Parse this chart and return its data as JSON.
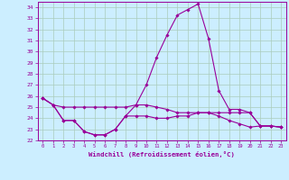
{
  "xlabel": "Windchill (Refroidissement éolien,°C)",
  "bg_color": "#cceeff",
  "grid_color": "#aaccbb",
  "line_color": "#990099",
  "hours": [
    0,
    1,
    2,
    3,
    4,
    5,
    6,
    7,
    8,
    9,
    10,
    11,
    12,
    13,
    14,
    15,
    16,
    17,
    18,
    19,
    20,
    21,
    22,
    23
  ],
  "temp": [
    25.8,
    25.2,
    23.8,
    23.8,
    22.8,
    22.5,
    22.5,
    23.0,
    24.2,
    25.2,
    27.0,
    29.5,
    31.5,
    33.3,
    33.8,
    34.3,
    31.2,
    26.5,
    24.8,
    24.8,
    24.5,
    23.3,
    23.3,
    23.2
  ],
  "wc_flat": [
    25.8,
    25.2,
    25.0,
    25.0,
    25.0,
    25.0,
    25.0,
    25.0,
    25.0,
    25.2,
    25.2,
    25.0,
    24.8,
    24.5,
    24.5,
    24.5,
    24.5,
    24.5,
    24.5,
    24.5,
    24.5,
    23.3,
    23.3,
    23.2
  ],
  "wc_low": [
    25.8,
    25.2,
    23.8,
    23.8,
    22.8,
    22.5,
    22.5,
    23.0,
    24.2,
    24.2,
    24.2,
    24.0,
    24.0,
    24.2,
    24.2,
    24.5,
    24.5,
    24.2,
    23.8,
    23.5,
    23.2,
    23.3,
    23.3,
    23.2
  ],
  "ylim": [
    22,
    34.5
  ],
  "xlim": [
    -0.5,
    23.5
  ],
  "yticks": [
    22,
    23,
    24,
    25,
    26,
    27,
    28,
    29,
    30,
    31,
    32,
    33,
    34
  ],
  "xticks": [
    0,
    1,
    2,
    3,
    4,
    5,
    6,
    7,
    8,
    9,
    10,
    11,
    12,
    13,
    14,
    15,
    16,
    17,
    18,
    19,
    20,
    21,
    22,
    23
  ]
}
